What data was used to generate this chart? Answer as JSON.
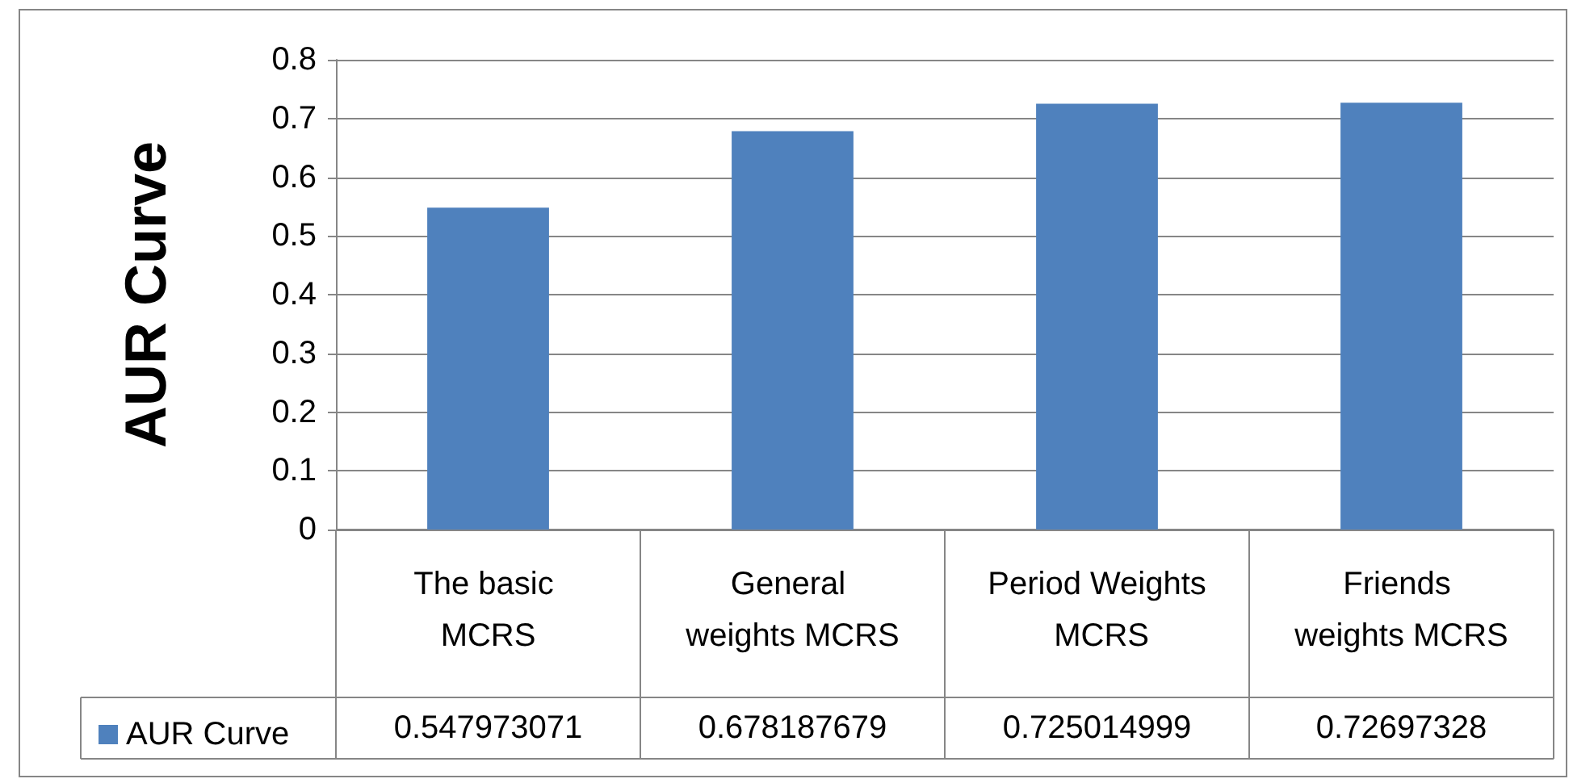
{
  "chart_data": {
    "type": "bar",
    "ylabel": "AUR Curve",
    "categories": [
      "The basic MCRS",
      "General weights MCRS",
      "Period Weights MCRS",
      "Friends weights MCRS"
    ],
    "series": [
      {
        "name": "AUR Curve",
        "color": "#4f81bd",
        "values": [
          0.547973071,
          0.678187679,
          0.725014999,
          0.72697328
        ]
      }
    ],
    "ylim": [
      0,
      0.8
    ],
    "yticks": [
      0,
      0.1,
      0.2,
      0.3,
      0.4,
      0.5,
      0.6,
      0.7,
      0.8
    ],
    "grid": "y",
    "legend": "bottom left",
    "data_labels": true
  }
}
